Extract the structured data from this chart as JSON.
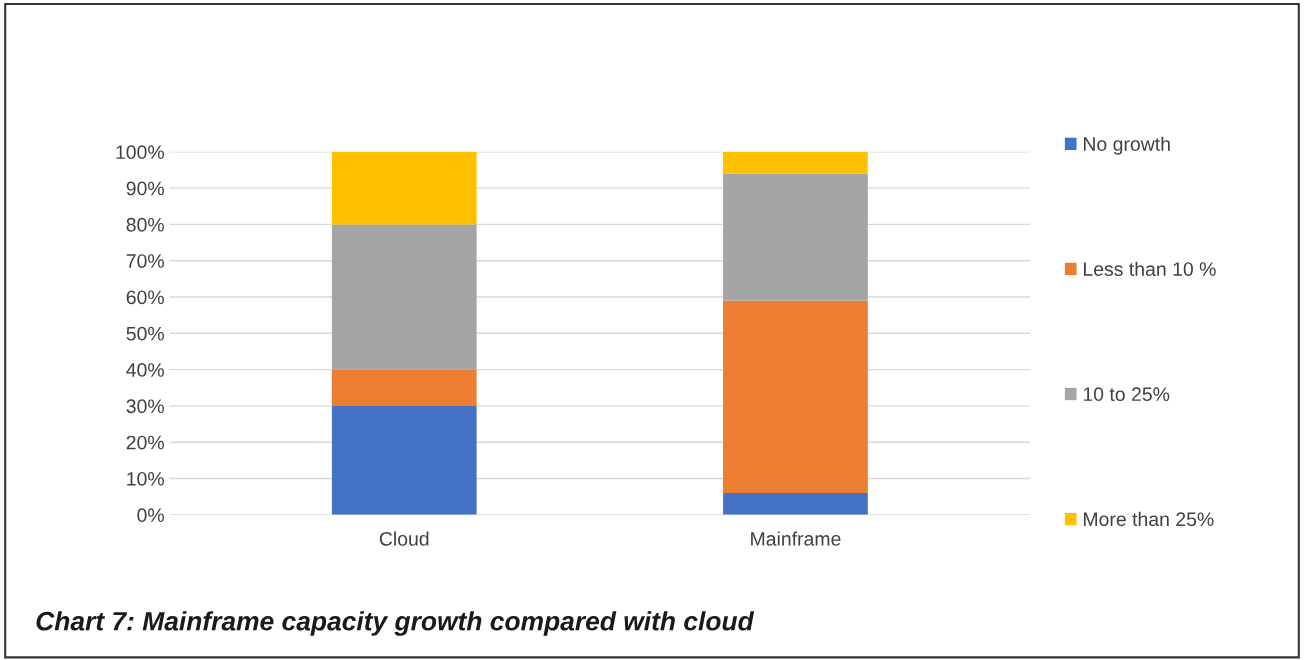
{
  "chart_data": {
    "type": "bar",
    "stacked": true,
    "title": "Chart 7: Mainframe capacity growth compared with cloud",
    "categories": [
      "Cloud",
      "Mainframe"
    ],
    "series": [
      {
        "name": "No growth",
        "color": "#4472c4",
        "values": [
          30,
          6
        ]
      },
      {
        "name": "Less than 10 %",
        "color": "#ed7d31",
        "values": [
          10,
          53
        ]
      },
      {
        "name": "10 to 25%",
        "color": "#a5a5a5",
        "values": [
          40,
          35
        ]
      },
      {
        "name": "More than 25%",
        "color": "#ffc000",
        "values": [
          20,
          6
        ]
      }
    ],
    "ylim": [
      0,
      100
    ],
    "yticks": [
      {
        "value": 0,
        "label": "0%"
      },
      {
        "value": 10,
        "label": "10%"
      },
      {
        "value": 20,
        "label": "20%"
      },
      {
        "value": 30,
        "label": "30%"
      },
      {
        "value": 40,
        "label": "40%"
      },
      {
        "value": 50,
        "label": "50%"
      },
      {
        "value": 60,
        "label": "60%"
      },
      {
        "value": 70,
        "label": "70%"
      },
      {
        "value": 80,
        "label": "80%"
      },
      {
        "value": 90,
        "label": "90%"
      },
      {
        "value": 100,
        "label": "100%"
      }
    ],
    "grid": "y",
    "legend": "right"
  }
}
